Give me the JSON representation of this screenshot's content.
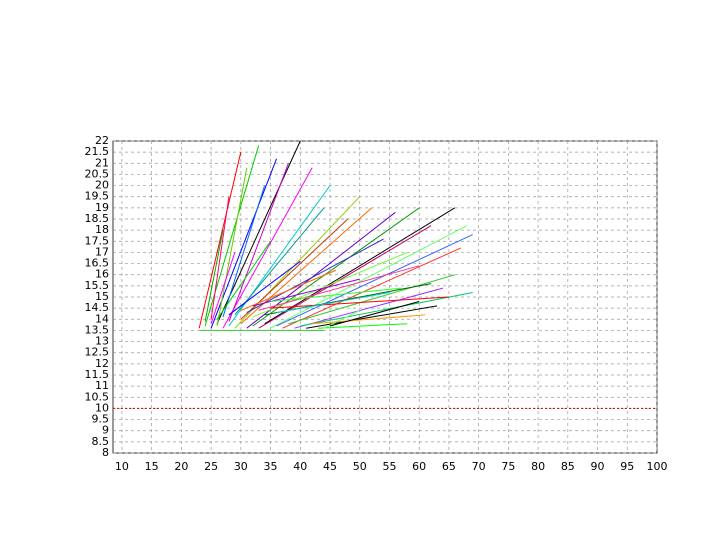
{
  "chart_data": {
    "type": "line",
    "xlim": [
      8.5,
      100
    ],
    "xticks": [
      10,
      15,
      20,
      25,
      30,
      35,
      40,
      45,
      50,
      55,
      60,
      65,
      70,
      75,
      80,
      85,
      90,
      95,
      100
    ],
    "ylim": [
      8,
      22
    ],
    "yticks": [
      8,
      8.5,
      9,
      9.5,
      10,
      10.5,
      11,
      11.5,
      12,
      12.5,
      13,
      13.5,
      14,
      14.5,
      15,
      15.5,
      16,
      16.5,
      17,
      17.5,
      18,
      18.5,
      19,
      19.5,
      20,
      20.5,
      21,
      21.5,
      22
    ],
    "grid": true,
    "reference_line": {
      "value": 10,
      "color": "#cc0000"
    },
    "series": [
      {
        "color": "#ff0000",
        "x": [
          23,
          30
        ],
        "values": [
          13.6,
          21.5
        ]
      },
      {
        "color": "#00cc00",
        "x": [
          24,
          33
        ],
        "values": [
          13.7,
          21.8
        ]
      },
      {
        "color": "#0000ff",
        "x": [
          25,
          36
        ],
        "values": [
          13.6,
          21.2
        ]
      },
      {
        "color": "#000000",
        "x": [
          26,
          40
        ],
        "values": [
          13.8,
          22
        ]
      },
      {
        "color": "#ff00ff",
        "x": [
          27,
          42
        ],
        "values": [
          13.6,
          20.8
        ]
      },
      {
        "color": "#00cccc",
        "x": [
          28,
          45
        ],
        "values": [
          13.7,
          20
        ]
      },
      {
        "color": "#99cc00",
        "x": [
          29,
          50
        ],
        "values": [
          13.6,
          19.5
        ]
      },
      {
        "color": "#ff6600",
        "x": [
          30,
          52
        ],
        "values": [
          13.8,
          19
        ]
      },
      {
        "color": "#6600cc",
        "x": [
          31,
          56
        ],
        "values": [
          13.6,
          18.8
        ]
      },
      {
        "color": "#009900",
        "x": [
          32,
          60
        ],
        "values": [
          13.7,
          19
        ]
      },
      {
        "color": "#cc0066",
        "x": [
          33,
          62
        ],
        "values": [
          13.6,
          18.2
        ]
      },
      {
        "color": "#000000",
        "x": [
          34,
          66
        ],
        "values": [
          13.8,
          19
        ]
      },
      {
        "color": "#66ff66",
        "x": [
          35,
          68
        ],
        "values": [
          13.6,
          18.2
        ]
      },
      {
        "color": "#3366ff",
        "x": [
          36,
          69
        ],
        "values": [
          13.7,
          17.8
        ]
      },
      {
        "color": "#ff3333",
        "x": [
          37,
          67
        ],
        "values": [
          13.6,
          17.2
        ]
      },
      {
        "color": "#33cc33",
        "x": [
          38,
          66
        ],
        "values": [
          13.8,
          16
        ]
      },
      {
        "color": "#9933ff",
        "x": [
          39,
          64
        ],
        "values": [
          13.6,
          15.4
        ]
      },
      {
        "color": "#00cc66",
        "x": [
          40,
          69
        ],
        "values": [
          13.7,
          15.2
        ]
      },
      {
        "color": "#000000",
        "x": [
          41,
          63
        ],
        "values": [
          13.6,
          14.6
        ]
      },
      {
        "color": "#ff9900",
        "x": [
          42,
          61
        ],
        "values": [
          13.8,
          14.2
        ]
      },
      {
        "color": "#00ff00",
        "x": [
          43,
          58
        ],
        "values": [
          13.6,
          13.8
        ]
      },
      {
        "color": "#00aa00",
        "x": [
          24,
          27
        ],
        "values": [
          13.9,
          18
        ]
      },
      {
        "color": "#ff0066",
        "x": [
          25,
          28
        ],
        "values": [
          14,
          19.5
        ]
      },
      {
        "color": "#66cc00",
        "x": [
          26,
          31
        ],
        "values": [
          13.7,
          20.8
        ]
      },
      {
        "color": "#0066ff",
        "x": [
          27,
          34
        ],
        "values": [
          14.1,
          20
        ]
      },
      {
        "color": "#cc00cc",
        "x": [
          28,
          38
        ],
        "values": [
          13.9,
          21
        ]
      },
      {
        "color": "#009999",
        "x": [
          29,
          44
        ],
        "values": [
          14.2,
          19
        ]
      },
      {
        "color": "#cc3300",
        "x": [
          30,
          48
        ],
        "values": [
          14,
          18.5
        ]
      },
      {
        "color": "#3333cc",
        "x": [
          31,
          54
        ],
        "values": [
          14.3,
          17.6
        ]
      },
      {
        "color": "#66ff33",
        "x": [
          32,
          58
        ],
        "values": [
          14.1,
          17
        ]
      },
      {
        "color": "#ff3399",
        "x": [
          33,
          60
        ],
        "values": [
          14.4,
          16.4
        ]
      },
      {
        "color": "#006600",
        "x": [
          34,
          62
        ],
        "values": [
          14.2,
          15.6
        ]
      },
      {
        "color": "#ff0000",
        "x": [
          35,
          65
        ],
        "values": [
          14.5,
          15
        ]
      },
      {
        "color": "#00cccc",
        "x": [
          36,
          55
        ],
        "values": [
          14.3,
          15.2
        ]
      },
      {
        "color": "#66ff66",
        "x": [
          44,
          50
        ],
        "values": [
          13.6,
          14.4
        ]
      },
      {
        "color": "#000000",
        "x": [
          45,
          60
        ],
        "values": [
          13.7,
          14.8
        ]
      },
      {
        "color": "#33cc33",
        "x": [
          23,
          44
        ],
        "values": [
          13.5,
          13.5
        ]
      },
      {
        "color": "#ff00ff",
        "x": [
          25,
          29
        ],
        "values": [
          13.8,
          17
        ]
      },
      {
        "color": "#00cc00",
        "x": [
          26,
          35
        ],
        "values": [
          14,
          17.5
        ]
      },
      {
        "color": "#0000ff",
        "x": [
          28,
          40
        ],
        "values": [
          14.2,
          16.6
        ]
      },
      {
        "color": "#ff6600",
        "x": [
          30,
          46
        ],
        "values": [
          14.4,
          16.2
        ]
      },
      {
        "color": "#9900cc",
        "x": [
          32,
          50
        ],
        "values": [
          14.6,
          15.8
        ]
      },
      {
        "color": "#33ff33",
        "x": [
          35,
          57
        ],
        "values": [
          14.8,
          15.4
        ]
      }
    ]
  }
}
